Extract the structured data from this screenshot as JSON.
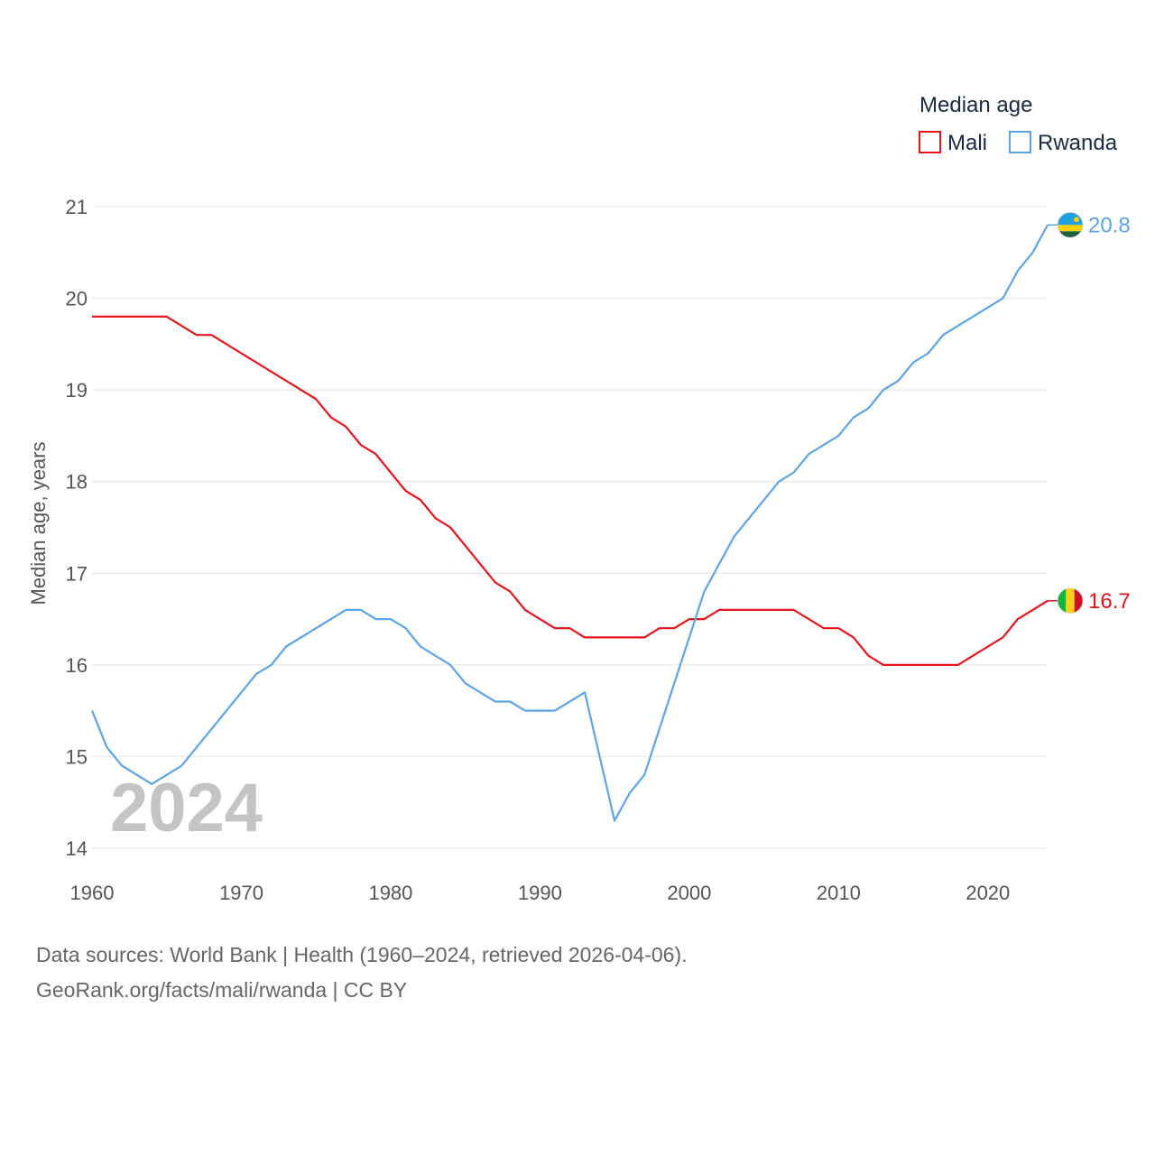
{
  "chart_data": {
    "type": "line",
    "ylabel": "Median age, years",
    "xlabel": "",
    "xlim": [
      1960,
      2024
    ],
    "ylim": [
      14,
      21
    ],
    "x_ticks": [
      1960,
      1970,
      1980,
      1990,
      2000,
      2010,
      2020
    ],
    "y_ticks": [
      14,
      15,
      16,
      17,
      18,
      19,
      20,
      21
    ],
    "grid": true,
    "legend": {
      "title": "Median age",
      "position": "top-right"
    },
    "year_label": "2024",
    "series": [
      {
        "name": "Mali",
        "color": "#e8141b",
        "end_label": "16.7",
        "flag": "mali-flag",
        "points": [
          [
            1960,
            19.8
          ],
          [
            1965,
            19.8
          ],
          [
            1967,
            19.6
          ],
          [
            1968,
            19.6
          ],
          [
            1975,
            18.9
          ],
          [
            1976,
            18.7
          ],
          [
            1977,
            18.6
          ],
          [
            1978,
            18.4
          ],
          [
            1979,
            18.3
          ],
          [
            1980,
            18.1
          ],
          [
            1981,
            17.9
          ],
          [
            1982,
            17.8
          ],
          [
            1983,
            17.6
          ],
          [
            1984,
            17.5
          ],
          [
            1985,
            17.3
          ],
          [
            1986,
            17.1
          ],
          [
            1987,
            16.9
          ],
          [
            1988,
            16.8
          ],
          [
            1989,
            16.6
          ],
          [
            1990,
            16.5
          ],
          [
            1991,
            16.4
          ],
          [
            1992,
            16.4
          ],
          [
            1993,
            16.3
          ],
          [
            1997,
            16.3
          ],
          [
            1998,
            16.4
          ],
          [
            1999,
            16.4
          ],
          [
            2000,
            16.5
          ],
          [
            2001,
            16.5
          ],
          [
            2002,
            16.6
          ],
          [
            2007,
            16.6
          ],
          [
            2008,
            16.5
          ],
          [
            2009,
            16.4
          ],
          [
            2010,
            16.4
          ],
          [
            2011,
            16.3
          ],
          [
            2012,
            16.1
          ],
          [
            2013,
            16.0
          ],
          [
            2018,
            16.0
          ],
          [
            2019,
            16.1
          ],
          [
            2020,
            16.2
          ],
          [
            2021,
            16.3
          ],
          [
            2022,
            16.5
          ],
          [
            2023,
            16.6
          ],
          [
            2024,
            16.7
          ]
        ]
      },
      {
        "name": "Rwanda",
        "color": "#5da5e8",
        "end_label": "20.8",
        "flag": "rwanda-flag",
        "points": [
          [
            1960,
            15.5
          ],
          [
            1961,
            15.1
          ],
          [
            1962,
            14.9
          ],
          [
            1964,
            14.7
          ],
          [
            1966,
            14.9
          ],
          [
            1971,
            15.9
          ],
          [
            1972,
            16.0
          ],
          [
            1973,
            16.2
          ],
          [
            1977,
            16.6
          ],
          [
            1978,
            16.6
          ],
          [
            1979,
            16.5
          ],
          [
            1980,
            16.5
          ],
          [
            1981,
            16.4
          ],
          [
            1982,
            16.2
          ],
          [
            1984,
            16.0
          ],
          [
            1985,
            15.8
          ],
          [
            1987,
            15.6
          ],
          [
            1988,
            15.6
          ],
          [
            1989,
            15.5
          ],
          [
            1991,
            15.5
          ],
          [
            1993,
            15.7
          ],
          [
            1995,
            14.3
          ],
          [
            1996,
            14.6
          ],
          [
            1997,
            14.8
          ],
          [
            2001,
            16.8
          ],
          [
            2003,
            17.4
          ],
          [
            2006,
            18.0
          ],
          [
            2007,
            18.1
          ],
          [
            2008,
            18.3
          ],
          [
            2010,
            18.5
          ],
          [
            2011,
            18.7
          ],
          [
            2012,
            18.8
          ],
          [
            2013,
            19.0
          ],
          [
            2014,
            19.1
          ],
          [
            2015,
            19.3
          ],
          [
            2016,
            19.4
          ],
          [
            2017,
            19.6
          ],
          [
            2021,
            20.0
          ],
          [
            2022,
            20.3
          ],
          [
            2023,
            20.5
          ],
          [
            2024,
            20.8
          ]
        ]
      }
    ]
  },
  "footer": {
    "line1": "Data sources: World Bank | Health (1960–2024, retrieved 2026-04-06).",
    "line2": "GeoRank.org/facts/mali/rwanda | CC BY"
  }
}
